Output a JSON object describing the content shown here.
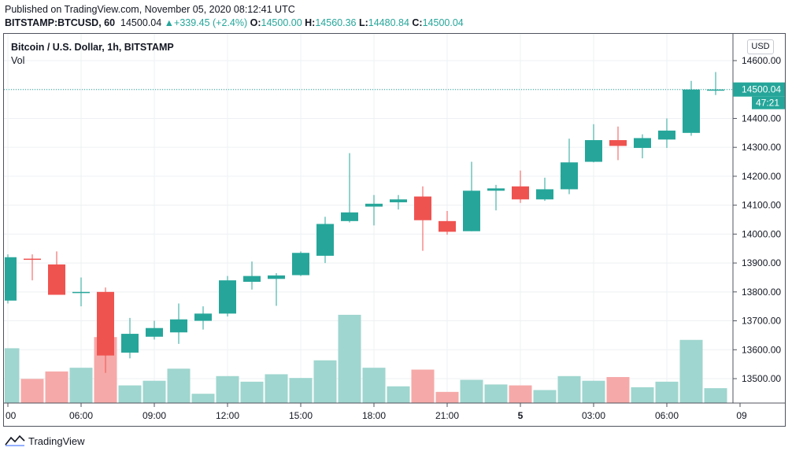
{
  "header": {
    "published": "Published on TradingView.com, November 05, 2020 08:12:41 UTC",
    "symbol": "BITSTAMP:BTCUSD, 60",
    "last": "14500.04",
    "change": "+339.45 (+2.4%)",
    "o_label": "O:",
    "o_value": "14500.00",
    "h_label": "H:",
    "h_value": "14560.36",
    "l_label": "L:",
    "l_value": "14480.84",
    "c_label": "C:",
    "c_value": "14500.04"
  },
  "legend": {
    "title": "Bitcoin / U.S. Dollar, 1h, BITSTAMP",
    "volume": "Vol"
  },
  "currency_button": "USD",
  "price_badge": {
    "value": "14500.04",
    "countdown": "47:21"
  },
  "footer": {
    "brand": "TradingView"
  },
  "colors": {
    "up": "#26a69a",
    "down": "#ef5350",
    "up_volume": "#9fd6cf",
    "down_volume": "#f5a9a8"
  },
  "chart_data": {
    "type": "candlestick",
    "y_ticks": [
      13500,
      13600,
      13700,
      13800,
      13900,
      14000,
      14100,
      14200,
      14300,
      14400,
      14500,
      14600
    ],
    "y_tick_labels": [
      "13500.00",
      "13600.00",
      "13700.00",
      "13800.00",
      "13900.00",
      "14000.00",
      "14100.00",
      "14200.00",
      "14300.00",
      "14400.00",
      "14500.00",
      "14600.00"
    ],
    "ylim": [
      13420,
      14640
    ],
    "x_tick_labels": [
      {
        "label": "00",
        "bar": 0
      },
      {
        "label": "06:00",
        "bar": 3
      },
      {
        "label": "09:00",
        "bar": 6
      },
      {
        "label": "12:00",
        "bar": 9
      },
      {
        "label": "15:00",
        "bar": 12
      },
      {
        "label": "18:00",
        "bar": 15
      },
      {
        "label": "21:00",
        "bar": 18
      },
      {
        "label": "5",
        "bar": 21
      },
      {
        "label": "03:00",
        "bar": 24
      },
      {
        "label": "06:00",
        "bar": 27
      },
      {
        "label": "09",
        "bar": 30
      }
    ],
    "bars": [
      {
        "o": 13770,
        "h": 13930,
        "l": 13760,
        "c": 13920,
        "vol": 0.59
      },
      {
        "o": 13915,
        "h": 13930,
        "l": 13840,
        "c": 13913,
        "vol": 0.26
      },
      {
        "o": 13895,
        "h": 13940,
        "l": 13790,
        "c": 13790,
        "vol": 0.34
      },
      {
        "o": 13797,
        "h": 13850,
        "l": 13750,
        "c": 13800,
        "vol": 0.38
      },
      {
        "o": 13800,
        "h": 13815,
        "l": 13520,
        "c": 13580,
        "vol": 0.71
      },
      {
        "o": 13590,
        "h": 13710,
        "l": 13570,
        "c": 13655,
        "vol": 0.19
      },
      {
        "o": 13645,
        "h": 13700,
        "l": 13635,
        "c": 13675,
        "vol": 0.24
      },
      {
        "o": 13660,
        "h": 13760,
        "l": 13620,
        "c": 13705,
        "vol": 0.37
      },
      {
        "o": 13700,
        "h": 13750,
        "l": 13670,
        "c": 13725,
        "vol": 0.1
      },
      {
        "o": 13725,
        "h": 13855,
        "l": 13715,
        "c": 13840,
        "vol": 0.29
      },
      {
        "o": 13835,
        "h": 13905,
        "l": 13808,
        "c": 13855,
        "vol": 0.23
      },
      {
        "o": 13845,
        "h": 13865,
        "l": 13752,
        "c": 13857,
        "vol": 0.31
      },
      {
        "o": 13858,
        "h": 13940,
        "l": 13855,
        "c": 13935,
        "vol": 0.27
      },
      {
        "o": 13925,
        "h": 14060,
        "l": 13900,
        "c": 14035,
        "vol": 0.46
      },
      {
        "o": 14045,
        "h": 14280,
        "l": 14040,
        "c": 14075,
        "vol": 0.95
      },
      {
        "o": 14095,
        "h": 14135,
        "l": 14030,
        "c": 14105,
        "vol": 0.38
      },
      {
        "o": 14110,
        "h": 14135,
        "l": 14085,
        "c": 14120,
        "vol": 0.18
      },
      {
        "o": 14130,
        "h": 14165,
        "l": 13942,
        "c": 14048,
        "vol": 0.36
      },
      {
        "o": 14045,
        "h": 14080,
        "l": 13998,
        "c": 14008,
        "vol": 0.12
      },
      {
        "o": 14010,
        "h": 14250,
        "l": 14010,
        "c": 14150,
        "vol": 0.25
      },
      {
        "o": 14150,
        "h": 14170,
        "l": 14082,
        "c": 14158,
        "vol": 0.2
      },
      {
        "o": 14165,
        "h": 14220,
        "l": 14108,
        "c": 14120,
        "vol": 0.19
      },
      {
        "o": 14120,
        "h": 14195,
        "l": 14115,
        "c": 14155,
        "vol": 0.14
      },
      {
        "o": 14155,
        "h": 14330,
        "l": 14138,
        "c": 14248,
        "vol": 0.29
      },
      {
        "o": 14250,
        "h": 14380,
        "l": 14248,
        "c": 14325,
        "vol": 0.24
      },
      {
        "o": 14325,
        "h": 14372,
        "l": 14256,
        "c": 14305,
        "vol": 0.28
      },
      {
        "o": 14298,
        "h": 14345,
        "l": 14262,
        "c": 14332,
        "vol": 0.17
      },
      {
        "o": 14327,
        "h": 14400,
        "l": 14298,
        "c": 14358,
        "vol": 0.23
      },
      {
        "o": 14350,
        "h": 14530,
        "l": 14340,
        "c": 14500,
        "vol": 0.68
      },
      {
        "o": 14500,
        "h": 14560.36,
        "l": 14480.84,
        "c": 14500.04,
        "vol": 0.16
      }
    ]
  }
}
